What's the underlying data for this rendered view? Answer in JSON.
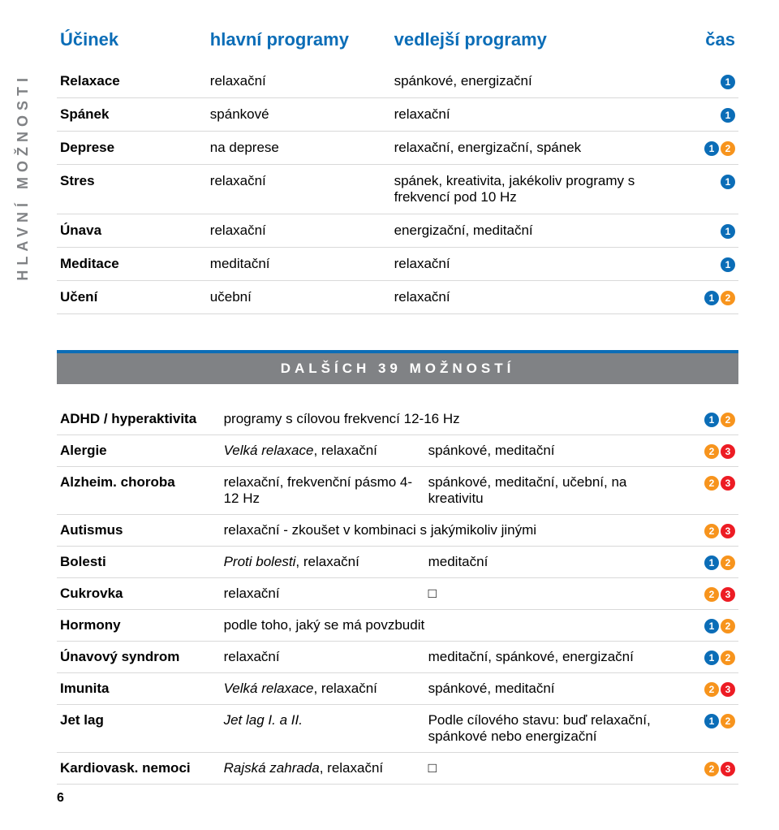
{
  "sideTab": "HLAVNÍ MOŽNOSTI",
  "pageNumber": "6",
  "headers": {
    "col1": "Účinek",
    "col2": "hlavní programy",
    "col3": "vedlejší programy",
    "col4": "čas"
  },
  "topRows": [
    {
      "c1": "Relaxace",
      "c2": "relaxační",
      "c3": "spánkové, energizační",
      "pills": [
        1
      ]
    },
    {
      "c1": "Spánek",
      "c2": "spánkové",
      "c3": "relaxační",
      "pills": [
        1
      ]
    },
    {
      "c1": "Deprese",
      "c2": "na deprese",
      "c3": "relaxační, energizační, spánek",
      "pills": [
        1,
        2
      ]
    },
    {
      "c1": "Stres",
      "c2": "relaxační",
      "c3": "spánek, kreativita, jakékoliv programy s frekvencí pod 10 Hz",
      "pills": [
        1
      ]
    },
    {
      "c1": "Únava",
      "c2": "relaxační",
      "c3": "energizační, meditační",
      "pills": [
        1
      ]
    },
    {
      "c1": "Meditace",
      "c2": "meditační",
      "c3": "relaxační",
      "pills": [
        1
      ]
    },
    {
      "c1": "Učení",
      "c2": "učební",
      "c3": "relaxační",
      "pills": [
        1,
        2
      ]
    }
  ],
  "banner": "DALŠÍCH 39 MOŽNOSTÍ",
  "botRows": [
    {
      "c1": "ADHD / hyperaktivita",
      "c2span": "programy s cílovou frekvencí 12-16 Hz",
      "pills": [
        1,
        2
      ]
    },
    {
      "c1": "Alergie",
      "c2i": "Velká relaxace",
      "c2p": ", relaxační",
      "c3": "spánkové, meditační",
      "pills": [
        2,
        3
      ]
    },
    {
      "c1": "Alzheim. choroba",
      "c2": "relaxační, frekvenční pásmo 4-12 Hz",
      "c3": "spánkové, meditační, učební, na kreativitu",
      "pills": [
        2,
        3
      ]
    },
    {
      "c1": "Autismus",
      "c2span": "relaxační - zkoušet v kombinaci s jakýmikoliv jinými",
      "pills": [
        2,
        3
      ]
    },
    {
      "c1": "Bolesti",
      "c2i": "Proti bolesti",
      "c2p": ", relaxační",
      "c3": "meditační",
      "pills": [
        1,
        2
      ]
    },
    {
      "c1": "Cukrovka",
      "c2": "relaxační",
      "c3sq": true,
      "pills": [
        2,
        3
      ]
    },
    {
      "c1": "Hormony",
      "c2span": "podle toho, jaký se má povzbudit",
      "pills": [
        1,
        2
      ]
    },
    {
      "c1": "Únavový syndrom",
      "c2": "relaxační",
      "c3": "meditační, spánkové, energizační",
      "pills": [
        1,
        2
      ]
    },
    {
      "c1": "Imunita",
      "c2i": "Velká relaxace",
      "c2p": ", relaxační",
      "c3": "spánkové, meditační",
      "pills": [
        2,
        3
      ]
    },
    {
      "c1": "Jet lag",
      "c2i": "Jet lag I. a II.",
      "c2p": "",
      "c3": "Podle cílového stavu: buď relaxační, spánkové nebo energizační",
      "pills": [
        1,
        2
      ]
    },
    {
      "c1": "Kardiovask. nemoci",
      "c2i": "Rajská zahrada",
      "c2p": ", relaxační",
      "c3sq": true,
      "pills": [
        2,
        3
      ]
    }
  ]
}
